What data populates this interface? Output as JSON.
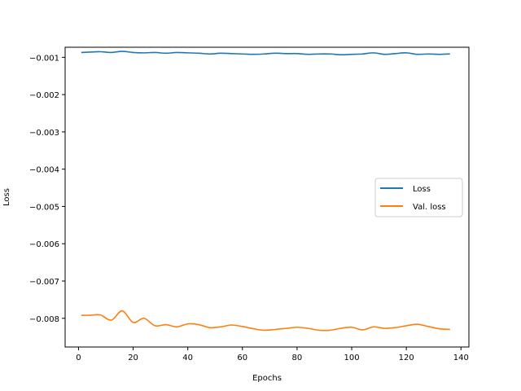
{
  "chart_data": {
    "type": "line",
    "xlabel": "Epochs",
    "ylabel": "Loss",
    "xlim": [
      -4.9,
      142.9
    ],
    "ylim": [
      -0.00877,
      -0.00073
    ],
    "xticks": [
      0,
      20,
      40,
      60,
      80,
      100,
      120,
      140
    ],
    "xtick_labels": [
      "0",
      "20",
      "40",
      "60",
      "80",
      "100",
      "120",
      "140"
    ],
    "yticks": [
      -0.001,
      -0.002,
      -0.003,
      -0.004,
      -0.005,
      -0.006,
      -0.007,
      -0.008
    ],
    "ytick_labels": [
      "−0.001",
      "−0.002",
      "−0.003",
      "−0.004",
      "−0.005",
      "−0.006",
      "−0.007",
      "−0.008"
    ],
    "grid": false,
    "legend_position": "center-right",
    "x": [
      1,
      4,
      8,
      12,
      16,
      20,
      24,
      28,
      32,
      36,
      40,
      44,
      48,
      52,
      56,
      60,
      64,
      68,
      72,
      76,
      80,
      84,
      88,
      92,
      96,
      100,
      104,
      108,
      112,
      116,
      120,
      124,
      128,
      132,
      136
    ],
    "series": [
      {
        "name": "Loss",
        "color": "#1f77b4",
        "values": [
          -0.00087,
          -0.00086,
          -0.00085,
          -0.00087,
          -0.00084,
          -0.00087,
          -0.00088,
          -0.00087,
          -0.00089,
          -0.00087,
          -0.00088,
          -0.00089,
          -0.00091,
          -0.00089,
          -0.0009,
          -0.00091,
          -0.00092,
          -0.00091,
          -0.00089,
          -0.0009,
          -0.0009,
          -0.00092,
          -0.00091,
          -0.00091,
          -0.00093,
          -0.00092,
          -0.00091,
          -0.00088,
          -0.00092,
          -0.0009,
          -0.00088,
          -0.00092,
          -0.00091,
          -0.00092,
          -0.00091
        ]
      },
      {
        "name": "Val. loss",
        "color": "#ff7f0e",
        "values": [
          -0.00792,
          -0.00792,
          -0.00791,
          -0.00805,
          -0.0078,
          -0.00811,
          -0.008,
          -0.0082,
          -0.00817,
          -0.00823,
          -0.00815,
          -0.00817,
          -0.00825,
          -0.00823,
          -0.00818,
          -0.00822,
          -0.00828,
          -0.00832,
          -0.0083,
          -0.00827,
          -0.00824,
          -0.00827,
          -0.00832,
          -0.00832,
          -0.00827,
          -0.00824,
          -0.00831,
          -0.00823,
          -0.00827,
          -0.00825,
          -0.0082,
          -0.00816,
          -0.00822,
          -0.00828,
          -0.0083
        ]
      }
    ]
  }
}
